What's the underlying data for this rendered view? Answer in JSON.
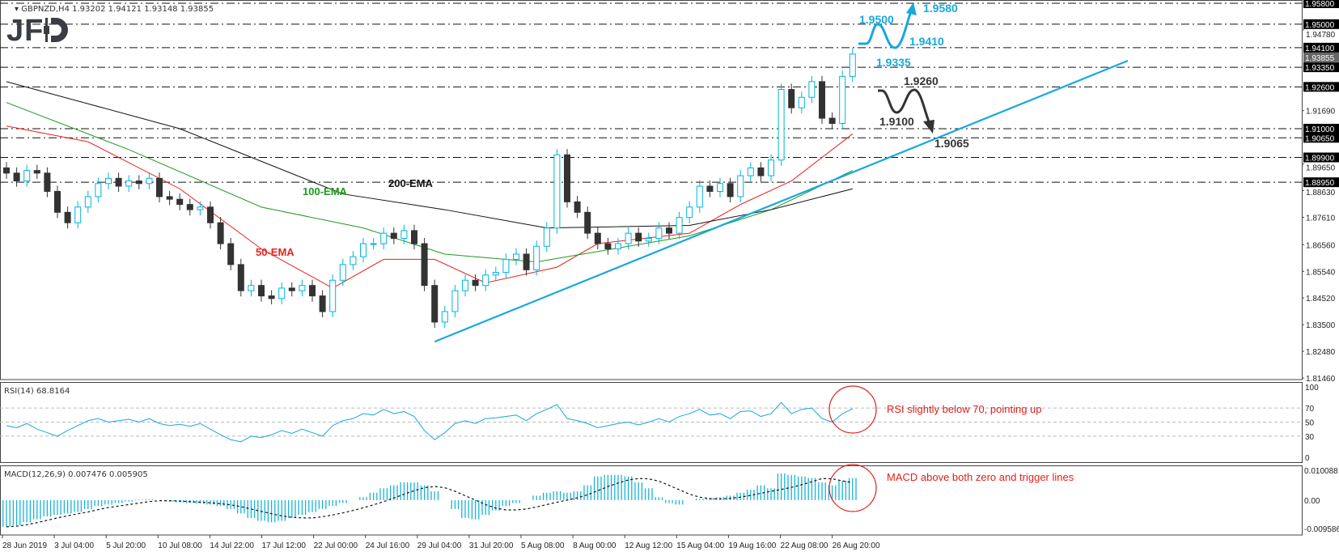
{
  "header": {
    "symbol": "GBPNZD,H4",
    "ohlc": "1.93202 1.94121 1.93148 1.93855",
    "logo": "JFD"
  },
  "colors": {
    "bull_outline": "#00b4e0",
    "bear": "#333333",
    "ema50": "#e8201c",
    "ema100": "#1f9a1f",
    "ema200": "#111111",
    "trend": "#18a8dc",
    "bull_scenario": "#18a8dc",
    "bear_scenario": "#333333",
    "note": "#e0201c"
  },
  "chart_data": {
    "type": "candlestick",
    "symbol": "GBPNZD",
    "timeframe": "H4",
    "price_range": [
      1.8146,
      1.958
    ],
    "price_ticks": [
      "1.94780",
      "1.91690",
      "1.89650",
      "1.88630",
      "1.87610",
      "1.86560",
      "1.85540",
      "1.84520",
      "1.83500",
      "1.82480",
      "1.81460"
    ],
    "levels": [
      {
        "price": 1.958,
        "label": "1.95800"
      },
      {
        "price": 1.95,
        "label": "1.95000"
      },
      {
        "price": 1.941,
        "label": "1.94100"
      },
      {
        "price": 1.9335,
        "label": "1.93350"
      },
      {
        "price": 1.926,
        "label": "1.92600"
      },
      {
        "price": 1.91,
        "label": "1.91000"
      },
      {
        "price": 1.9065,
        "label": "1.90650"
      },
      {
        "price": 1.899,
        "label": "1.89900"
      },
      {
        "price": 1.8895,
        "label": "1.88950"
      }
    ],
    "current_price": {
      "price": 1.93855,
      "label": "1.93855"
    },
    "closes": [
      1.893,
      1.89,
      1.894,
      1.893,
      1.886,
      1.878,
      1.874,
      1.88,
      1.884,
      1.889,
      1.891,
      1.888,
      1.89,
      1.889,
      1.891,
      1.884,
      1.883,
      1.881,
      1.879,
      1.88,
      1.874,
      1.866,
      1.858,
      1.848,
      1.85,
      1.846,
      1.845,
      1.849,
      1.848,
      1.85,
      1.846,
      1.84,
      1.852,
      1.858,
      1.861,
      1.866,
      1.866,
      1.87,
      1.868,
      1.871,
      1.866,
      1.85,
      1.836,
      1.84,
      1.848,
      1.852,
      1.85,
      1.854,
      1.855,
      1.86,
      1.862,
      1.856,
      1.865,
      1.872,
      1.9,
      1.882,
      1.878,
      1.87,
      1.866,
      1.864,
      1.866,
      1.87,
      1.867,
      1.868,
      1.872,
      1.87,
      1.876,
      1.88,
      1.888,
      1.886,
      1.889,
      1.884,
      1.892,
      1.895,
      1.892,
      1.898,
      1.925,
      1.918,
      1.922,
      1.928,
      1.914,
      1.912,
      1.93,
      1.93855
    ],
    "ema": [
      {
        "name": "50-EMA",
        "points": [
          [
            0,
            1.911
          ],
          [
            8,
            1.905
          ],
          [
            17,
            1.887
          ],
          [
            25,
            1.864
          ],
          [
            32,
            1.849
          ],
          [
            37,
            1.86
          ],
          [
            42,
            1.86
          ],
          [
            47,
            1.851
          ],
          [
            54,
            1.857
          ],
          [
            58,
            1.866
          ],
          [
            67,
            1.87
          ],
          [
            72,
            1.881
          ],
          [
            77,
            1.89
          ],
          [
            83,
            1.908
          ]
        ]
      },
      {
        "name": "100-EMA",
        "points": [
          [
            0,
            1.92
          ],
          [
            12,
            1.902
          ],
          [
            25,
            1.88
          ],
          [
            35,
            1.872
          ],
          [
            43,
            1.862
          ],
          [
            52,
            1.859
          ],
          [
            58,
            1.863
          ],
          [
            67,
            1.869
          ],
          [
            75,
            1.879
          ],
          [
            83,
            1.894
          ]
        ]
      },
      {
        "name": "200-EMA",
        "points": [
          [
            0,
            1.928
          ],
          [
            17,
            1.91
          ],
          [
            33,
            1.885
          ],
          [
            43,
            1.879
          ],
          [
            53,
            1.872
          ],
          [
            67,
            1.873
          ],
          [
            75,
            1.879
          ],
          [
            83,
            1.887
          ]
        ]
      }
    ],
    "trendline": {
      "from": [
        42,
        1.8285
      ],
      "to": [
        110,
        1.936
      ]
    },
    "scenarios": {
      "bullish": [
        "1.9500",
        "1.9410",
        "1.9580",
        "1.9335"
      ],
      "bearish": [
        "1.9260",
        "1.9100",
        "1.9065"
      ]
    },
    "dates": [
      "28 Jun 2019",
      "3 Jul 04:00",
      "5 Jul 20:00",
      "10 Jul 08:00",
      "14 Jul 22:00",
      "17 Jul 12:00",
      "22 Jul 00:00",
      "24 Jul 16:00",
      "29 Jul 04:00",
      "31 Jul 20:00",
      "5 Aug 08:00",
      "8 Aug 00:00",
      "12 Aug 12:00",
      "15 Aug 04:00",
      "19 Aug 16:00",
      "22 Aug 08:00",
      "26 Aug 20:00"
    ],
    "rsi": {
      "label": "RSI(14) 68.8164",
      "ticks": [
        "100",
        "70",
        "50",
        "30",
        "0"
      ],
      "values": [
        45,
        42,
        48,
        40,
        35,
        30,
        38,
        45,
        52,
        55,
        50,
        52,
        54,
        50,
        55,
        48,
        45,
        47,
        44,
        48,
        40,
        32,
        25,
        22,
        30,
        28,
        32,
        38,
        34,
        40,
        35,
        30,
        45,
        52,
        55,
        62,
        60,
        68,
        62,
        65,
        58,
        38,
        25,
        35,
        48,
        52,
        48,
        55,
        56,
        58,
        60,
        52,
        62,
        68,
        75,
        55,
        52,
        48,
        42,
        45,
        48,
        50,
        46,
        50,
        55,
        50,
        58,
        62,
        68,
        60,
        62,
        55,
        65,
        66,
        58,
        62,
        78,
        62,
        68,
        70,
        55,
        50,
        62,
        68.8164
      ]
    },
    "macd": {
      "label": "MACD(12,26,9) 0.007476 0.005905",
      "ticks": [
        "0.010088",
        "0.00",
        "-0.009586"
      ],
      "range": [
        -0.009586,
        0.010088
      ],
      "histogram": [
        -0.009,
        -0.0085,
        -0.0075,
        -0.0065,
        -0.0055,
        -0.005,
        -0.0045,
        -0.004,
        -0.003,
        -0.002,
        -0.0015,
        -0.001,
        -0.0005,
        0.0002,
        0.0003,
        0,
        -0.0005,
        -0.0008,
        -0.001,
        -0.0012,
        -0.0015,
        -0.002,
        -0.003,
        -0.0045,
        -0.006,
        -0.007,
        -0.0075,
        -0.007,
        -0.006,
        -0.005,
        -0.004,
        -0.003,
        -0.002,
        -0.001,
        0,
        0.001,
        0.0025,
        0.004,
        0.005,
        0.006,
        0.006,
        0.005,
        0.003,
        0,
        -0.003,
        -0.006,
        -0.0065,
        -0.005,
        -0.0035,
        -0.002,
        -0.001,
        0,
        0.0015,
        0.0025,
        0.003,
        0.0025,
        0.003,
        0.005,
        0.008,
        0.0085,
        0.0085,
        0.008,
        0.006,
        0.004,
        0.001,
        -0.001,
        -0.0015,
        0,
        0.0005,
        0.0008,
        0.001,
        0.0015,
        0.0025,
        0.0035,
        0.005,
        0.004,
        0.009,
        0.0085,
        0.008,
        0.0075,
        0.006,
        0.005,
        0.0065,
        0.007476
      ],
      "signal": [
        -0.009,
        -0.0088,
        -0.0083,
        -0.0076,
        -0.0068,
        -0.006,
        -0.0053,
        -0.0046,
        -0.004,
        -0.0032,
        -0.0025,
        -0.002,
        -0.0015,
        -0.001,
        -0.0005,
        -0.0002,
        -0.0002,
        -0.0003,
        -0.0005,
        -0.0007,
        -0.0009,
        -0.0012,
        -0.0016,
        -0.0022,
        -0.003,
        -0.0038,
        -0.0046,
        -0.0053,
        -0.0058,
        -0.006,
        -0.006,
        -0.0056,
        -0.005,
        -0.0043,
        -0.0035,
        -0.0026,
        -0.0016,
        -0.0005,
        0.0007,
        0.002,
        0.0032,
        0.0042,
        0.0046,
        0.0042,
        0.003,
        0.0015,
        0,
        -0.0015,
        -0.0027,
        -0.0033,
        -0.0033,
        -0.003,
        -0.0023,
        -0.0015,
        -0.0007,
        0,
        0.0008,
        0.0018,
        0.0032,
        0.0046,
        0.0058,
        0.0068,
        0.0073,
        0.0072,
        0.0064,
        0.005,
        0.0035,
        0.002,
        0.001,
        0.0005,
        0.0004,
        0.0006,
        0.001,
        0.0016,
        0.0023,
        0.003,
        0.0036,
        0.0043,
        0.0052,
        0.0062,
        0.0073,
        0.0072,
        0.0065,
        0.005905
      ]
    },
    "notes": {
      "rsi": "RSI slightly below 70, pointing up",
      "macd": "MACD above both zero and trigger lines"
    }
  }
}
